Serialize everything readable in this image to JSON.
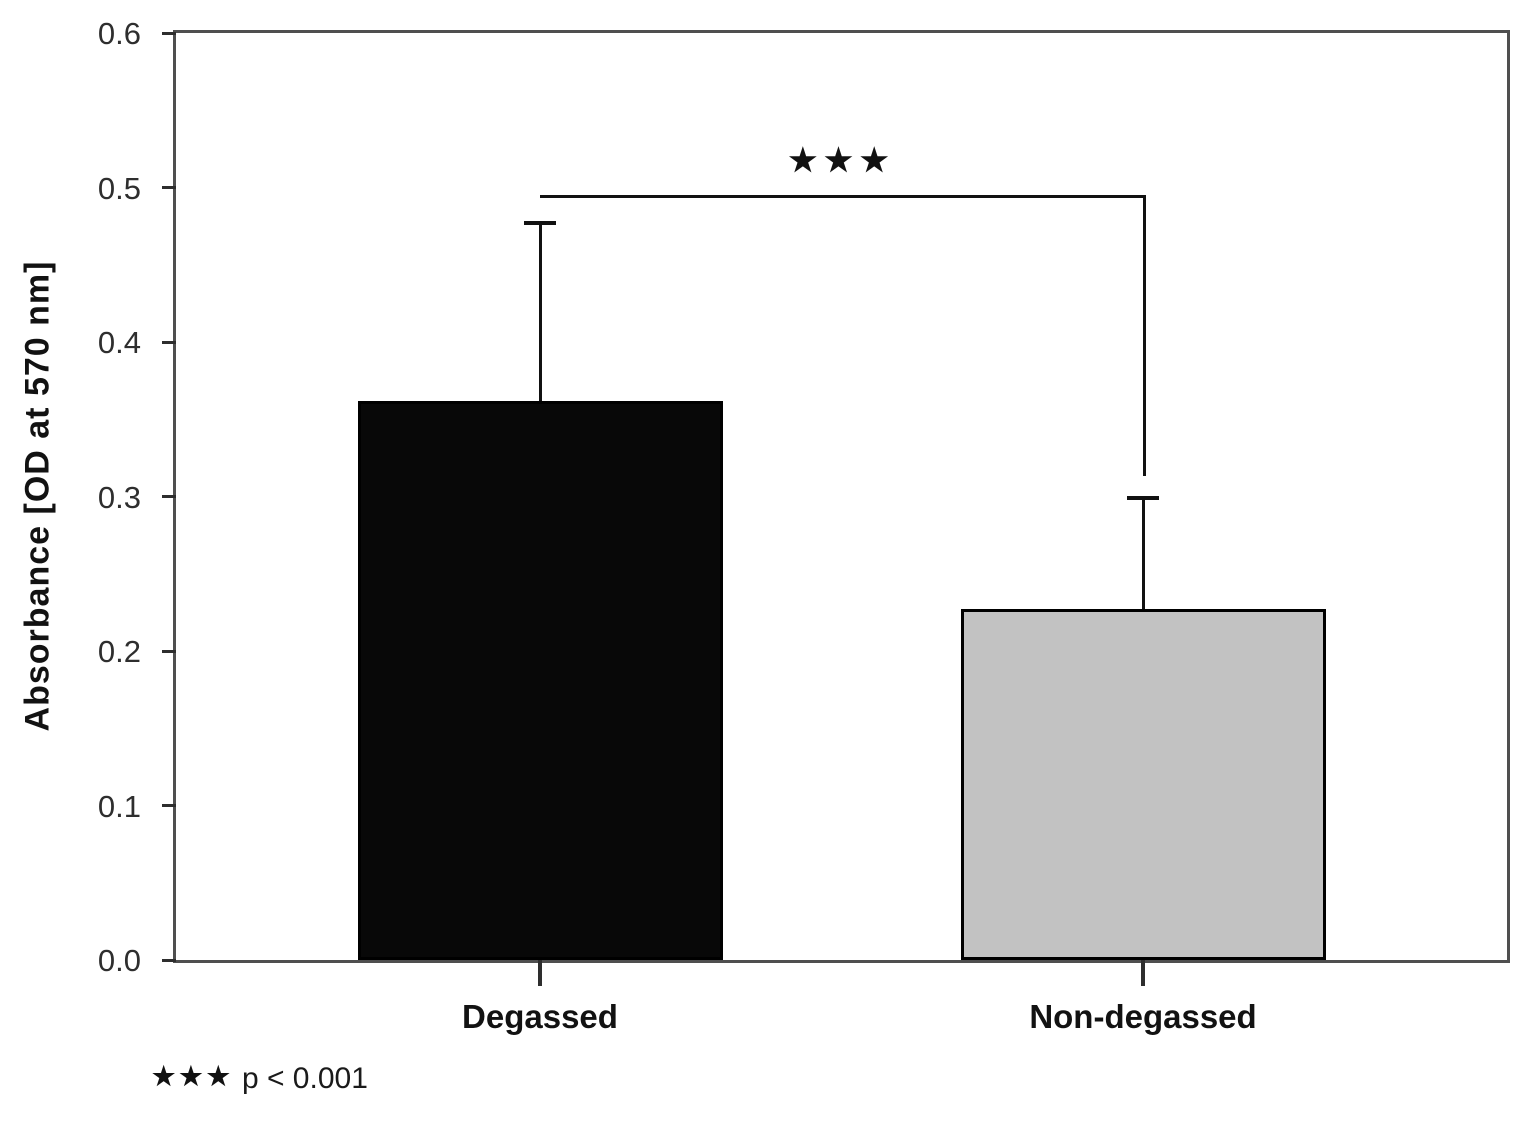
{
  "chart_data": {
    "type": "bar",
    "title": "",
    "xlabel": "",
    "ylabel": "Absorbance [OD at 570 nm]",
    "ylim": [
      0,
      0.6
    ],
    "yticks": [
      0.0,
      0.1,
      0.2,
      0.3,
      0.4,
      0.5,
      0.6
    ],
    "ytick_labels": [
      "0.0",
      "0.1",
      "0.2",
      "0.3",
      "0.4",
      "0.5",
      "0.6"
    ],
    "categories": [
      "Degassed",
      "Non-degassed"
    ],
    "values": [
      0.362,
      0.227
    ],
    "error_upper": [
      0.115,
      0.072
    ],
    "bar_colors": [
      "#080808",
      "#c2c2c2"
    ],
    "bar_border_color": "#000000",
    "grid": false,
    "legend": false,
    "frame_color": "#4f4f4f",
    "significance": {
      "label": "★★★",
      "bracket_level": 0.495,
      "bracket_drop_to": 0.315,
      "between": [
        "Degassed",
        "Non-degassed"
      ]
    },
    "footnote": {
      "stars": "★★★",
      "text": "p < 0.001"
    }
  }
}
